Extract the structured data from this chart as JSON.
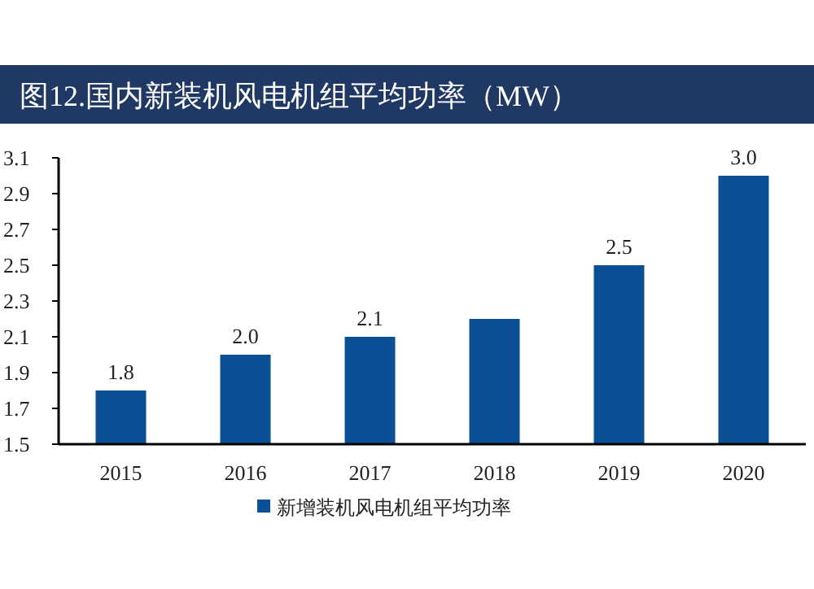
{
  "chart_data": {
    "type": "bar",
    "title": "图12.国内新装机风电机组平均功率（MW）",
    "categories": [
      "2015",
      "2016",
      "2017",
      "2018",
      "2019",
      "2020"
    ],
    "series": [
      {
        "name": "新增装机风电机组平均功率",
        "color": "#0b4f94",
        "values": [
          1.8,
          2.0,
          2.1,
          2.2,
          2.5,
          3.0
        ],
        "value_labels": [
          "1.8",
          "2.0",
          "2.1",
          null,
          "2.5",
          "3.0"
        ]
      }
    ],
    "ylim": [
      1.5,
      3.1
    ],
    "yticks": [
      1.5,
      1.7,
      1.9,
      2.1,
      2.3,
      2.5,
      2.7,
      2.9,
      3.1
    ],
    "grid": false,
    "legend": "bottom"
  }
}
